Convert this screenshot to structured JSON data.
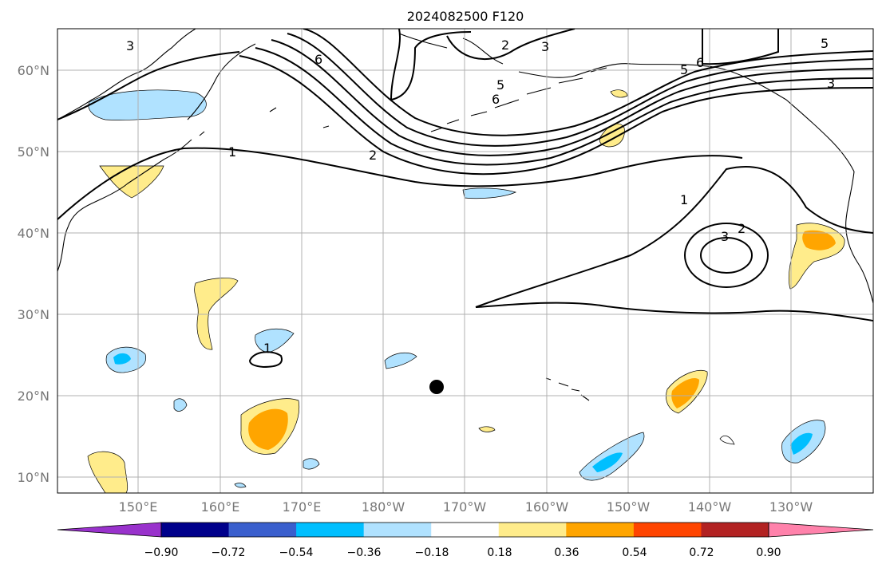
{
  "title": "2024082500 F120",
  "lat_labels": [
    "60°N",
    "50°N",
    "40°N",
    "30°N",
    "20°N",
    "10°N"
  ],
  "lon_labels": [
    "150°E",
    "160°E",
    "170°E",
    "180°W",
    "170°W",
    "160°W",
    "150°W",
    "140°W",
    "130°W"
  ],
  "colorbar": {
    "ticks": [
      "−0.90",
      "−0.72",
      "−0.54",
      "−0.36",
      "−0.18",
      "0.18",
      "0.36",
      "0.54",
      "0.72",
      "0.90"
    ],
    "colors": [
      "#9932cc",
      "#00008b",
      "#3a5fcd",
      "#00bfff",
      "#b0e2ff",
      "#ffffff",
      "#ffec8b",
      "#ffa500",
      "#ff4500",
      "#b22222",
      "#ff82ab"
    ]
  },
  "contour_labels": [
    "3",
    "6",
    "2",
    "3",
    "5",
    "6",
    "6",
    "5",
    "3",
    "5",
    "1",
    "2",
    "1",
    "2",
    "3",
    "1"
  ],
  "colors": {
    "yellow": "#ffec8b",
    "orange": "#ffa500",
    "lightblue": "#b0e2ff",
    "blue": "#00bfff",
    "grid": "#b0b0b0"
  }
}
